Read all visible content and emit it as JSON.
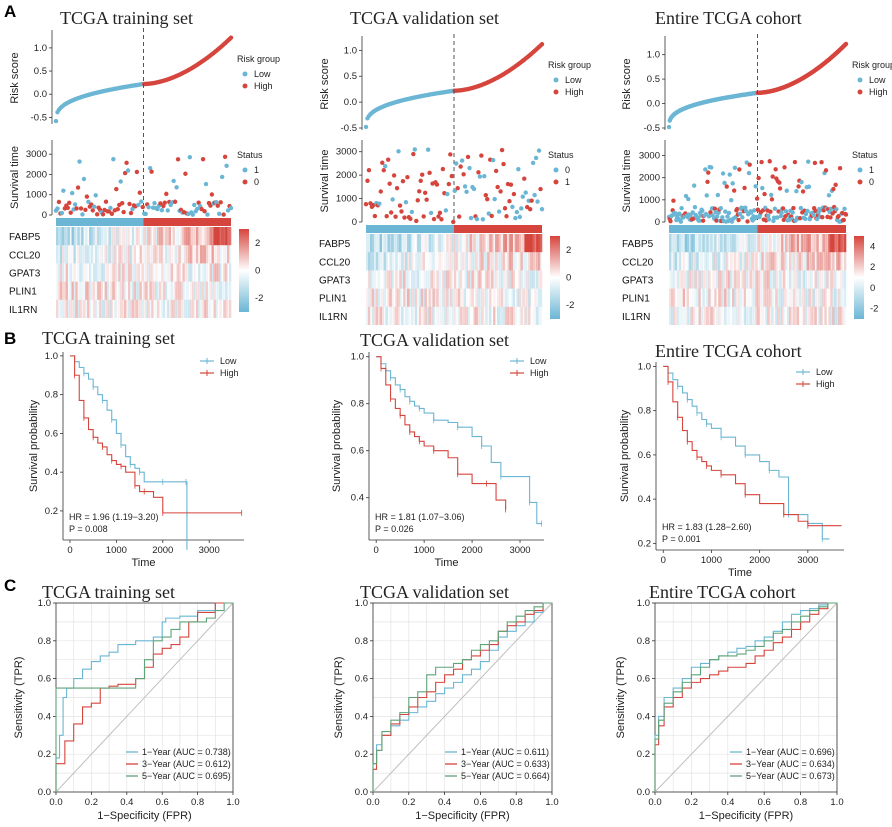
{
  "panel_labels": {
    "a": "A",
    "b": "B",
    "c": "C"
  },
  "colors": {
    "low": "#6ab6d4",
    "high": "#d6453d",
    "status1": "#6ab6d4",
    "status0": "#d6453d",
    "grid": "#e3e3e3",
    "diag": "#bfbfbf",
    "green": "#5fa37a"
  },
  "chart_data": [
    {
      "type": "scatter",
      "id": "risk",
      "titles": [
        "TCGA training set",
        "TCGA validation set",
        "Entire TCGA cohort"
      ],
      "ylabel": "Risk score",
      "legend_title": "Risk group",
      "legend_items": [
        "Low",
        "High"
      ],
      "yticks": [
        [
          "1.0",
          "0.5",
          "0.0",
          "-0.5"
        ],
        [
          "1.0",
          "0.5",
          "0.0",
          "-0.5"
        ],
        [
          "1.0",
          "0.5",
          "0.0",
          "-0.5"
        ]
      ],
      "ylim": [
        [
          -0.6,
          1.3
        ],
        [
          -0.5,
          1.2
        ],
        [
          -0.5,
          1.3
        ]
      ],
      "n": [
        120,
        120,
        240
      ],
      "cutoff_fraction": 0.5
    },
    {
      "type": "scatter",
      "id": "survival_time",
      "ylabel": "Survival time",
      "legend_title": "Status",
      "legend_items": [
        [
          "1",
          "0"
        ],
        [
          "0",
          "1"
        ],
        [
          "1",
          "0"
        ]
      ],
      "legend_colors": [
        [
          "#6ab6d4",
          "#d6453d"
        ],
        [
          "#6ab6d4",
          "#d6453d"
        ],
        [
          "#6ab6d4",
          "#d6453d"
        ]
      ],
      "yticks": [
        [
          "3000",
          "2000",
          "1000",
          "0"
        ],
        [
          "3000",
          "2000",
          "1000",
          "0"
        ],
        [
          "3000",
          "2000",
          "1000",
          "0"
        ]
      ],
      "ylim": [
        [
          0,
          3700
        ],
        [
          0,
          3500
        ],
        [
          0,
          3700
        ]
      ]
    },
    {
      "type": "heatmap",
      "id": "expression",
      "genes": [
        "FABP5",
        "CCL20",
        "GPAT3",
        "PLIN1",
        "IL1RN"
      ],
      "colorbar_ticks": [
        [
          "2",
          "0",
          "-2"
        ],
        [
          "2",
          "0",
          "-2"
        ],
        [
          "4",
          "2",
          "0",
          "-2"
        ]
      ],
      "color_range": [
        [
          -3,
          3
        ],
        [
          -3,
          3
        ],
        [
          -3,
          5
        ]
      ]
    },
    {
      "type": "line",
      "id": "km",
      "titles": [
        "TCGA training set",
        "TCGA validation  set",
        "Entire TCGA cohort"
      ],
      "xlabel": "Time",
      "ylabel": "Survival probability",
      "legend_items": [
        "Low",
        "High"
      ],
      "xticks": [
        "0",
        "1000",
        "2000",
        "3000"
      ],
      "xlim": [
        [
          -150,
          3750
        ],
        [
          -150,
          3500
        ],
        [
          -150,
          3750
        ]
      ],
      "yticks": [
        "0.2",
        "0.4",
        "0.6",
        "0.8",
        "1.0"
      ],
      "ylim": [
        [
          0.05,
          1.02
        ],
        [
          0.22,
          1.02
        ],
        [
          0.17,
          1.02
        ]
      ],
      "hr": [
        "HR = 1.96 (1.19−3.20)",
        "HR = 1.81 (1.07−3.06)",
        "HR = 1.83 (1.28−2.60)"
      ],
      "p": [
        "P = 0.008",
        "P = 0.026",
        "P = 0.001"
      ],
      "series": [
        [
          {
            "name": "Low",
            "x": [
              0,
              100,
              200,
              300,
              400,
              500,
              600,
              700,
              800,
              900,
              1000,
              1100,
              1200,
              1300,
              1400,
              1500,
              1600,
              2000,
              2400,
              2500,
              2520
            ],
            "y": [
              1.0,
              0.97,
              0.94,
              0.91,
              0.88,
              0.84,
              0.8,
              0.77,
              0.72,
              0.67,
              0.6,
              0.54,
              0.48,
              0.44,
              0.42,
              0.4,
              0.35,
              0.35,
              0.35,
              0.35,
              0.0
            ]
          },
          {
            "name": "High",
            "x": [
              0,
              100,
              200,
              300,
              400,
              500,
              600,
              700,
              800,
              900,
              1000,
              1100,
              1200,
              1400,
              1500,
              1600,
              1800,
              2000,
              2400,
              3700
            ],
            "y": [
              1.0,
              0.9,
              0.77,
              0.68,
              0.62,
              0.58,
              0.55,
              0.53,
              0.49,
              0.46,
              0.44,
              0.43,
              0.4,
              0.33,
              0.3,
              0.3,
              0.27,
              0.19,
              0.19,
              0.19
            ]
          }
        ],
        [
          {
            "name": "Low",
            "x": [
              0,
              100,
              200,
              300,
              400,
              500,
              600,
              700,
              800,
              900,
              1000,
              1200,
              1500,
              1700,
              2000,
              2200,
              2400,
              2600,
              3000,
              3200,
              3350,
              3450
            ],
            "y": [
              1.0,
              0.97,
              0.94,
              0.91,
              0.88,
              0.86,
              0.83,
              0.81,
              0.79,
              0.78,
              0.76,
              0.73,
              0.72,
              0.7,
              0.66,
              0.62,
              0.55,
              0.49,
              0.49,
              0.38,
              0.29,
              0.29
            ]
          },
          {
            "name": "High",
            "x": [
              0,
              100,
              200,
              300,
              400,
              500,
              600,
              700,
              800,
              900,
              1000,
              1200,
              1500,
              1700,
              2000,
              2300,
              2500,
              2700
            ],
            "y": [
              1.0,
              0.95,
              0.88,
              0.82,
              0.78,
              0.75,
              0.71,
              0.68,
              0.66,
              0.64,
              0.62,
              0.6,
              0.57,
              0.5,
              0.46,
              0.46,
              0.39,
              0.35
            ]
          }
        ],
        [
          {
            "name": "Low",
            "x": [
              0,
              100,
              200,
              300,
              400,
              500,
              600,
              700,
              800,
              900,
              1000,
              1200,
              1500,
              1700,
              2000,
              2200,
              2400,
              2600,
              3000,
              3300,
              3450
            ],
            "y": [
              1.0,
              0.97,
              0.94,
              0.91,
              0.88,
              0.85,
              0.82,
              0.79,
              0.76,
              0.74,
              0.72,
              0.68,
              0.64,
              0.6,
              0.57,
              0.53,
              0.5,
              0.33,
              0.29,
              0.22,
              0.22
            ]
          },
          {
            "name": "High",
            "x": [
              0,
              100,
              200,
              300,
              400,
              500,
              600,
              700,
              800,
              900,
              1000,
              1200,
              1500,
              1700,
              2000,
              2500,
              2800,
              3000,
              3700
            ],
            "y": [
              1.0,
              0.93,
              0.84,
              0.77,
              0.71,
              0.66,
              0.62,
              0.59,
              0.57,
              0.55,
              0.53,
              0.51,
              0.47,
              0.42,
              0.38,
              0.33,
              0.3,
              0.28,
              0.28
            ]
          }
        ]
      ]
    },
    {
      "type": "line",
      "id": "roc",
      "titles": [
        "TCGA training set",
        "TCGA validation set",
        "Entire TCGA cohort"
      ],
      "xlabel": "1−Specificity (FPR)",
      "ylabel": "Sensitivity (TPR)",
      "xticks": [
        "0.0",
        "0.2",
        "0.4",
        "0.6",
        "0.8",
        "1.0"
      ],
      "yticks": [
        "0.0",
        "0.2",
        "0.4",
        "0.6",
        "0.8",
        "1.0"
      ],
      "xlim": [
        0,
        1
      ],
      "ylim": [
        0,
        1
      ],
      "legend": [
        [
          "1−Year (AUC = 0.738)",
          "3−Year (AUC = 0.612)",
          "5−Year (AUC = 0.695)"
        ],
        [
          "1−Year (AUC = 0.611)",
          "3−Year (AUC = 0.633)",
          "5−Year (AUC = 0.664)"
        ],
        [
          "1−Year (AUC = 0.696)",
          "3−Year (AUC = 0.634)",
          "5−Year (AUC = 0.673)"
        ]
      ],
      "series": [
        [
          {
            "name": "1-Year",
            "x": [
              0,
              0.02,
              0.04,
              0.06,
              0.1,
              0.15,
              0.2,
              0.25,
              0.3,
              0.35,
              0.4,
              0.45,
              0.5,
              0.55,
              0.6,
              0.62,
              0.7,
              0.8,
              0.9,
              1.0
            ],
            "y": [
              0,
              0.18,
              0.3,
              0.5,
              0.55,
              0.6,
              0.65,
              0.69,
              0.72,
              0.74,
              0.78,
              0.78,
              0.8,
              0.8,
              0.82,
              0.9,
              0.92,
              0.93,
              0.96,
              1.0
            ]
          },
          {
            "name": "3-Year",
            "x": [
              0,
              0.05,
              0.1,
              0.15,
              0.2,
              0.25,
              0.3,
              0.35,
              0.4,
              0.45,
              0.5,
              0.55,
              0.6,
              0.65,
              0.7,
              0.75,
              0.8,
              0.9,
              1.0
            ],
            "y": [
              0,
              0.15,
              0.27,
              0.36,
              0.45,
              0.47,
              0.55,
              0.56,
              0.57,
              0.57,
              0.6,
              0.66,
              0.73,
              0.76,
              0.78,
              0.82,
              0.9,
              0.95,
              1.0
            ]
          },
          {
            "name": "5-Year",
            "x": [
              0,
              0.02,
              0.05,
              0.1,
              0.2,
              0.3,
              0.4,
              0.45,
              0.5,
              0.55,
              0.6,
              0.65,
              0.7,
              0.75,
              0.8,
              0.85,
              0.9,
              0.95,
              1.0
            ],
            "y": [
              0,
              0.55,
              0.55,
              0.55,
              0.55,
              0.55,
              0.55,
              0.55,
              0.6,
              0.7,
              0.8,
              0.82,
              0.86,
              0.9,
              0.9,
              0.9,
              0.92,
              0.96,
              1.0
            ]
          }
        ],
        [
          {
            "name": "1-Year",
            "x": [
              0,
              0.02,
              0.05,
              0.1,
              0.15,
              0.2,
              0.25,
              0.3,
              0.35,
              0.4,
              0.45,
              0.5,
              0.55,
              0.6,
              0.65,
              0.7,
              0.75,
              0.8,
              0.85,
              0.9,
              0.95,
              1.0
            ],
            "y": [
              0,
              0.15,
              0.25,
              0.3,
              0.35,
              0.38,
              0.42,
              0.45,
              0.48,
              0.52,
              0.55,
              0.58,
              0.62,
              0.65,
              0.69,
              0.75,
              0.82,
              0.85,
              0.88,
              0.9,
              0.95,
              1.0
            ]
          },
          {
            "name": "3-Year",
            "x": [
              0,
              0.02,
              0.05,
              0.1,
              0.15,
              0.2,
              0.25,
              0.3,
              0.35,
              0.4,
              0.45,
              0.5,
              0.55,
              0.6,
              0.65,
              0.7,
              0.75,
              0.8,
              0.85,
              0.9,
              0.95,
              1.0
            ],
            "y": [
              0,
              0.12,
              0.22,
              0.3,
              0.36,
              0.41,
              0.45,
              0.5,
              0.53,
              0.58,
              0.62,
              0.65,
              0.7,
              0.72,
              0.75,
              0.78,
              0.85,
              0.88,
              0.9,
              0.94,
              0.96,
              1.0
            ]
          },
          {
            "name": "5-Year",
            "x": [
              0,
              0.02,
              0.05,
              0.1,
              0.15,
              0.2,
              0.25,
              0.3,
              0.35,
              0.4,
              0.45,
              0.5,
              0.55,
              0.6,
              0.65,
              0.7,
              0.75,
              0.8,
              0.85,
              0.9,
              0.95,
              1.0
            ],
            "y": [
              0,
              0.15,
              0.22,
              0.32,
              0.38,
              0.42,
              0.5,
              0.53,
              0.62,
              0.66,
              0.66,
              0.68,
              0.7,
              0.75,
              0.78,
              0.8,
              0.85,
              0.9,
              0.93,
              0.96,
              0.98,
              1.0
            ]
          }
        ],
        [
          {
            "name": "1-Year",
            "x": [
              0,
              0.02,
              0.05,
              0.1,
              0.15,
              0.2,
              0.25,
              0.3,
              0.35,
              0.4,
              0.45,
              0.5,
              0.55,
              0.6,
              0.65,
              0.7,
              0.75,
              0.8,
              0.85,
              0.9,
              0.95,
              1.0
            ],
            "y": [
              0,
              0.3,
              0.4,
              0.5,
              0.55,
              0.6,
              0.66,
              0.68,
              0.7,
              0.72,
              0.74,
              0.76,
              0.77,
              0.8,
              0.82,
              0.85,
              0.9,
              0.94,
              0.96,
              0.97,
              0.99,
              1.0
            ]
          },
          {
            "name": "3-Year",
            "x": [
              0,
              0.02,
              0.05,
              0.1,
              0.15,
              0.2,
              0.25,
              0.3,
              0.35,
              0.4,
              0.45,
              0.5,
              0.55,
              0.6,
              0.65,
              0.7,
              0.75,
              0.8,
              0.85,
              0.9,
              0.95,
              1.0
            ],
            "y": [
              0,
              0.25,
              0.35,
              0.45,
              0.5,
              0.55,
              0.58,
              0.6,
              0.62,
              0.64,
              0.66,
              0.66,
              0.68,
              0.72,
              0.75,
              0.79,
              0.82,
              0.86,
              0.9,
              0.94,
              0.97,
              1.0
            ]
          },
          {
            "name": "5-Year",
            "x": [
              0,
              0.02,
              0.05,
              0.1,
              0.15,
              0.2,
              0.25,
              0.3,
              0.35,
              0.4,
              0.45,
              0.5,
              0.55,
              0.6,
              0.65,
              0.7,
              0.75,
              0.8,
              0.85,
              0.9,
              0.95,
              1.0
            ],
            "y": [
              0,
              0.28,
              0.38,
              0.47,
              0.53,
              0.58,
              0.62,
              0.66,
              0.7,
              0.72,
              0.72,
              0.73,
              0.75,
              0.77,
              0.8,
              0.84,
              0.86,
              0.9,
              0.93,
              0.96,
              0.98,
              1.0
            ]
          }
        ]
      ]
    }
  ]
}
